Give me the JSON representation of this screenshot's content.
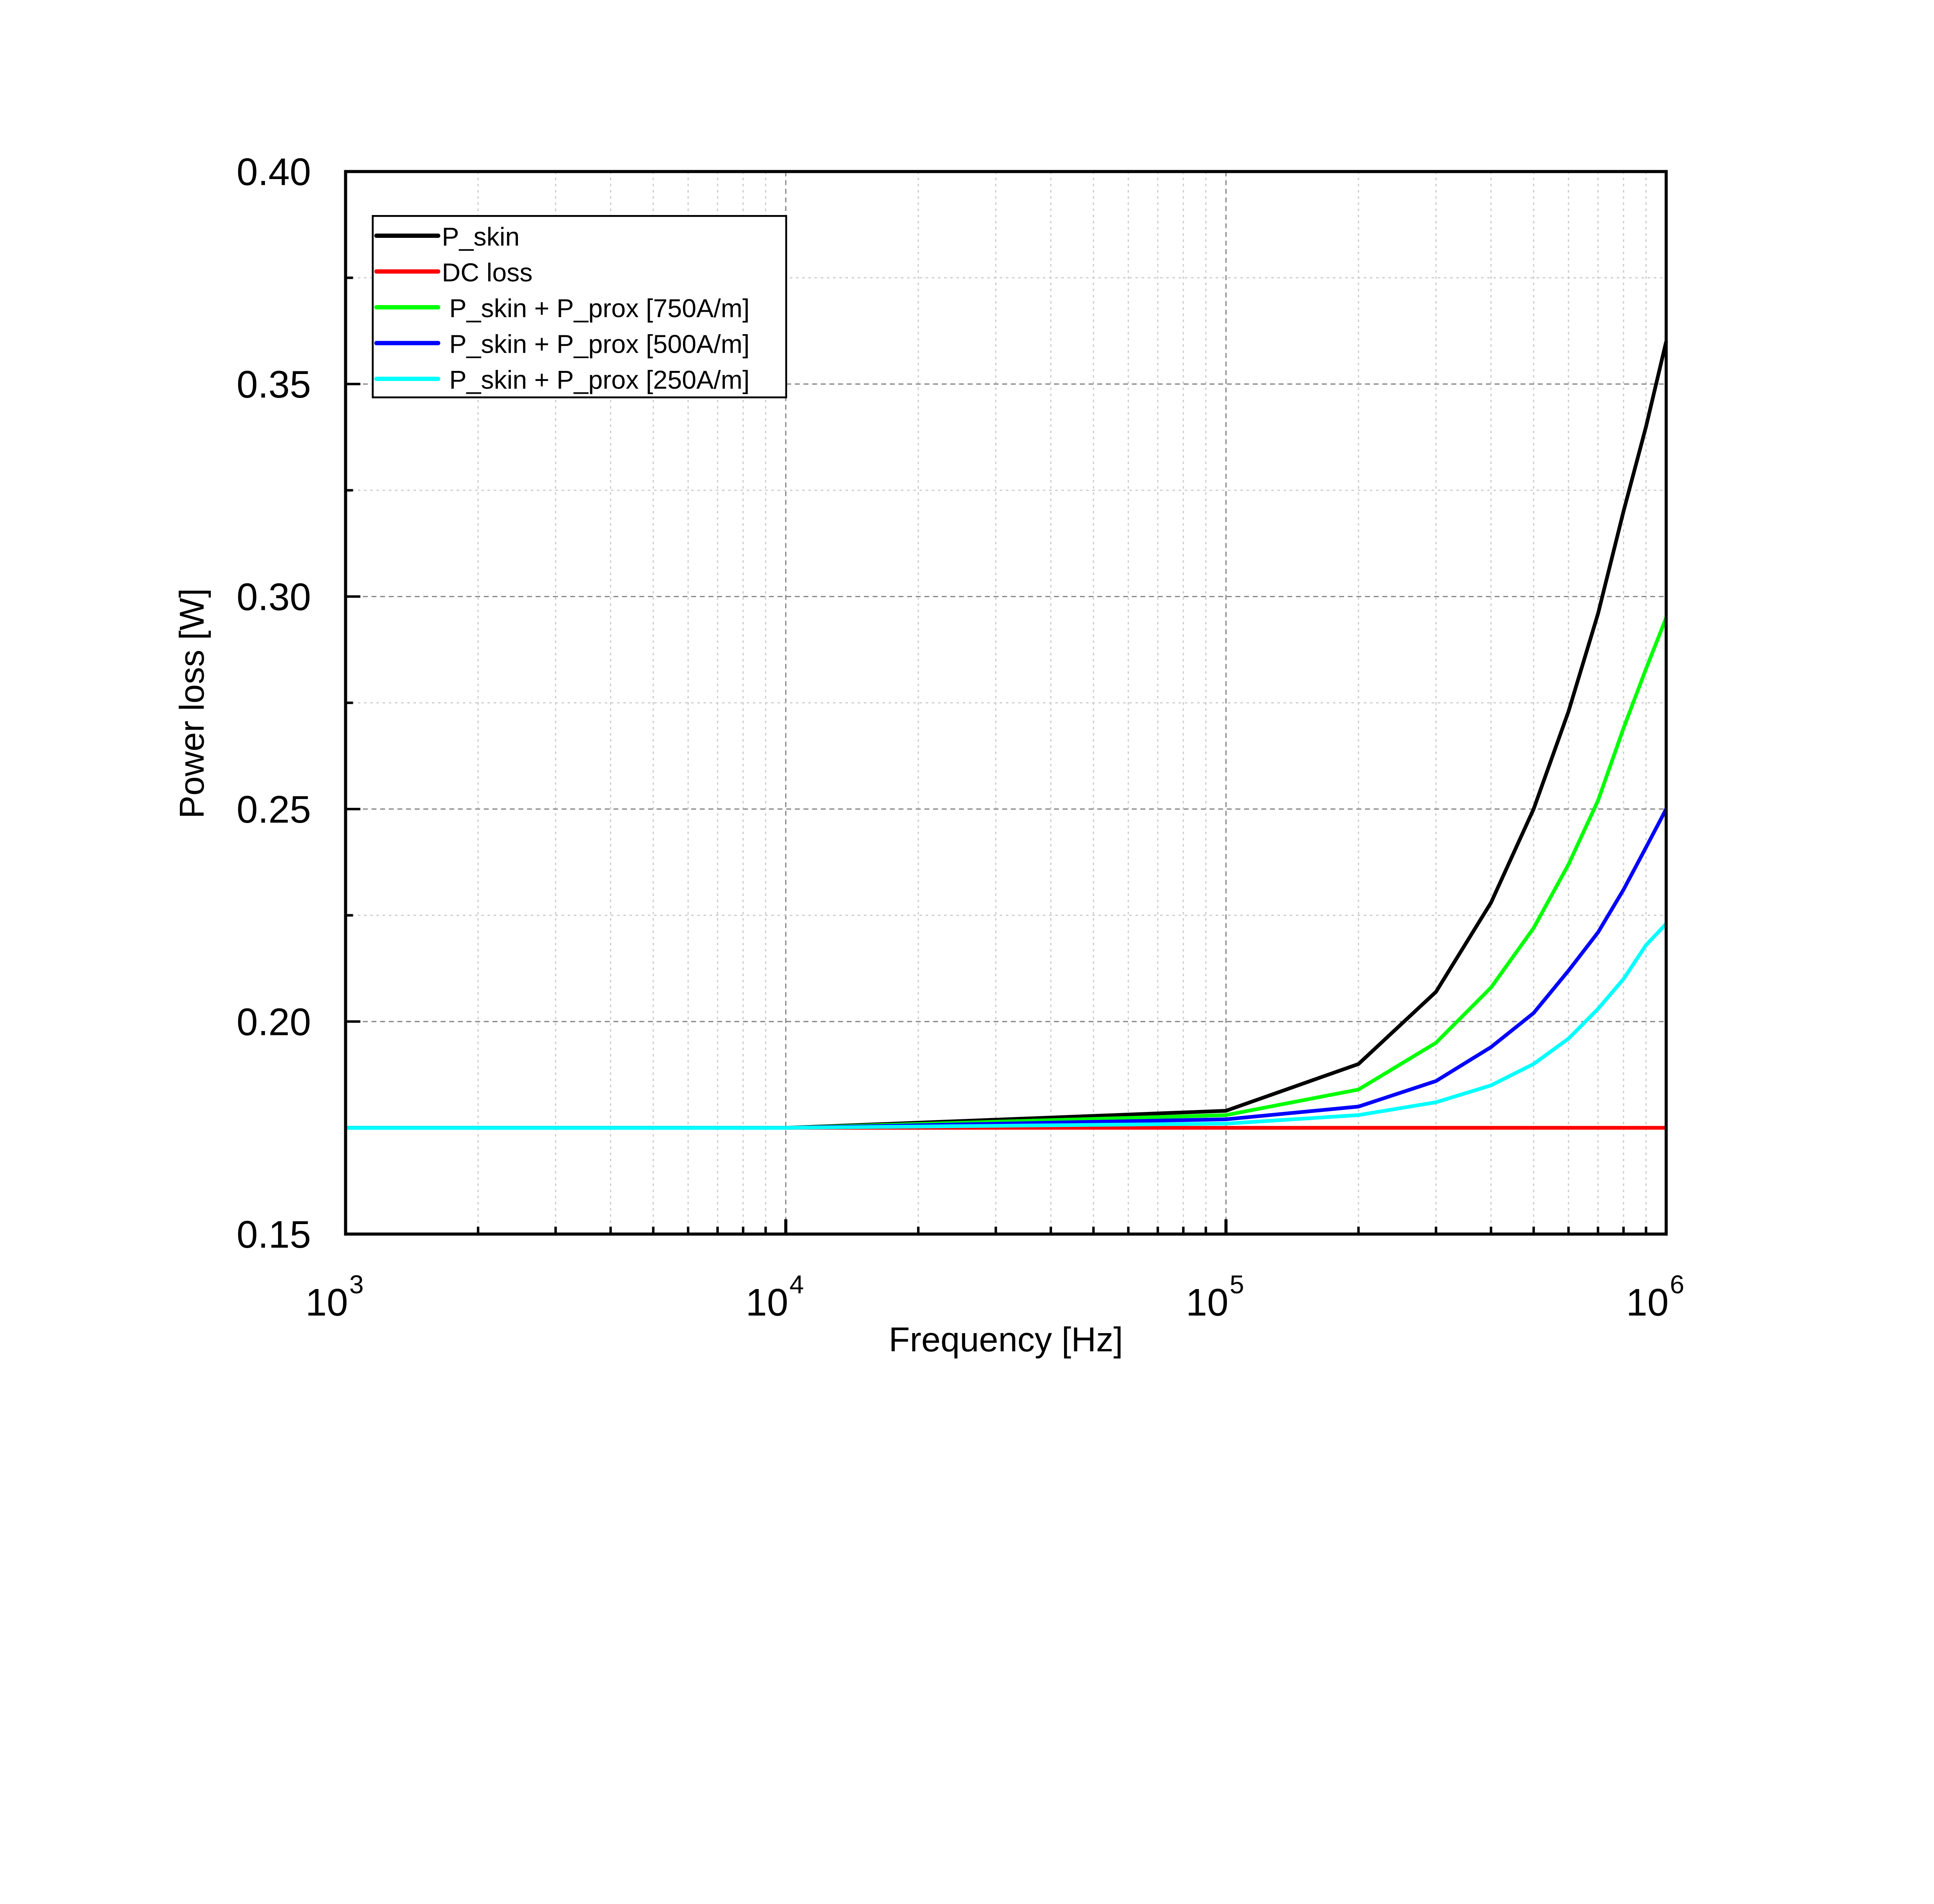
{
  "chart_data": {
    "type": "line",
    "title": "",
    "xlabel": "Frequency [Hz]",
    "ylabel": "Power loss [W]",
    "xscale": "log",
    "xlim": [
      1000,
      1000000
    ],
    "ylim": [
      0.15,
      0.4
    ],
    "grid": true,
    "legend_position": "top-left",
    "x_ticks": [
      {
        "value": 1000,
        "base": "10",
        "exp": "3"
      },
      {
        "value": 10000,
        "base": "10",
        "exp": "4"
      },
      {
        "value": 100000,
        "base": "10",
        "exp": "5"
      },
      {
        "value": 1000000,
        "base": "10",
        "exp": "6"
      }
    ],
    "y_ticks": [
      {
        "value": 0.15,
        "label": "0.15"
      },
      {
        "value": 0.2,
        "label": "0.20"
      },
      {
        "value": 0.25,
        "label": "0.25"
      },
      {
        "value": 0.3,
        "label": "0.30"
      },
      {
        "value": 0.35,
        "label": "0.35"
      },
      {
        "value": 0.4,
        "label": "0.40"
      }
    ],
    "x": [
      1000,
      10000,
      100000,
      200000,
      300000,
      400000,
      500000,
      600000,
      700000,
      800000,
      900000,
      1000000
    ],
    "series": [
      {
        "name": "P_skin",
        "color": "#000000",
        "values": [
          0.175,
          0.175,
          0.179,
          0.19,
          0.207,
          0.228,
          0.25,
          0.273,
          0.296,
          0.32,
          0.34,
          0.36
        ]
      },
      {
        "name": "DC loss",
        "color": "#ff0000",
        "values": [
          0.175,
          0.175,
          0.175,
          0.175,
          0.175,
          0.175,
          0.175,
          0.175,
          0.175,
          0.175,
          0.175,
          0.175
        ]
      },
      {
        "name": "P_skin + P_prox [750A/m]",
        "color": "#00ff00",
        "values": [
          0.175,
          0.175,
          0.178,
          0.184,
          0.195,
          0.208,
          0.222,
          0.237,
          0.252,
          0.269,
          0.283,
          0.295
        ]
      },
      {
        "name": "P_skin + P_prox [500A/m]",
        "color": "#0000ff",
        "values": [
          0.175,
          0.175,
          0.177,
          0.18,
          0.186,
          0.194,
          0.202,
          0.212,
          0.221,
          0.231,
          0.241,
          0.25
        ]
      },
      {
        "name": "P_skin + P_prox [250A/m]",
        "color": "#00ffff",
        "values": [
          0.175,
          0.175,
          0.176,
          0.178,
          0.181,
          0.185,
          0.19,
          0.196,
          0.203,
          0.21,
          0.218,
          0.223
        ]
      }
    ]
  }
}
